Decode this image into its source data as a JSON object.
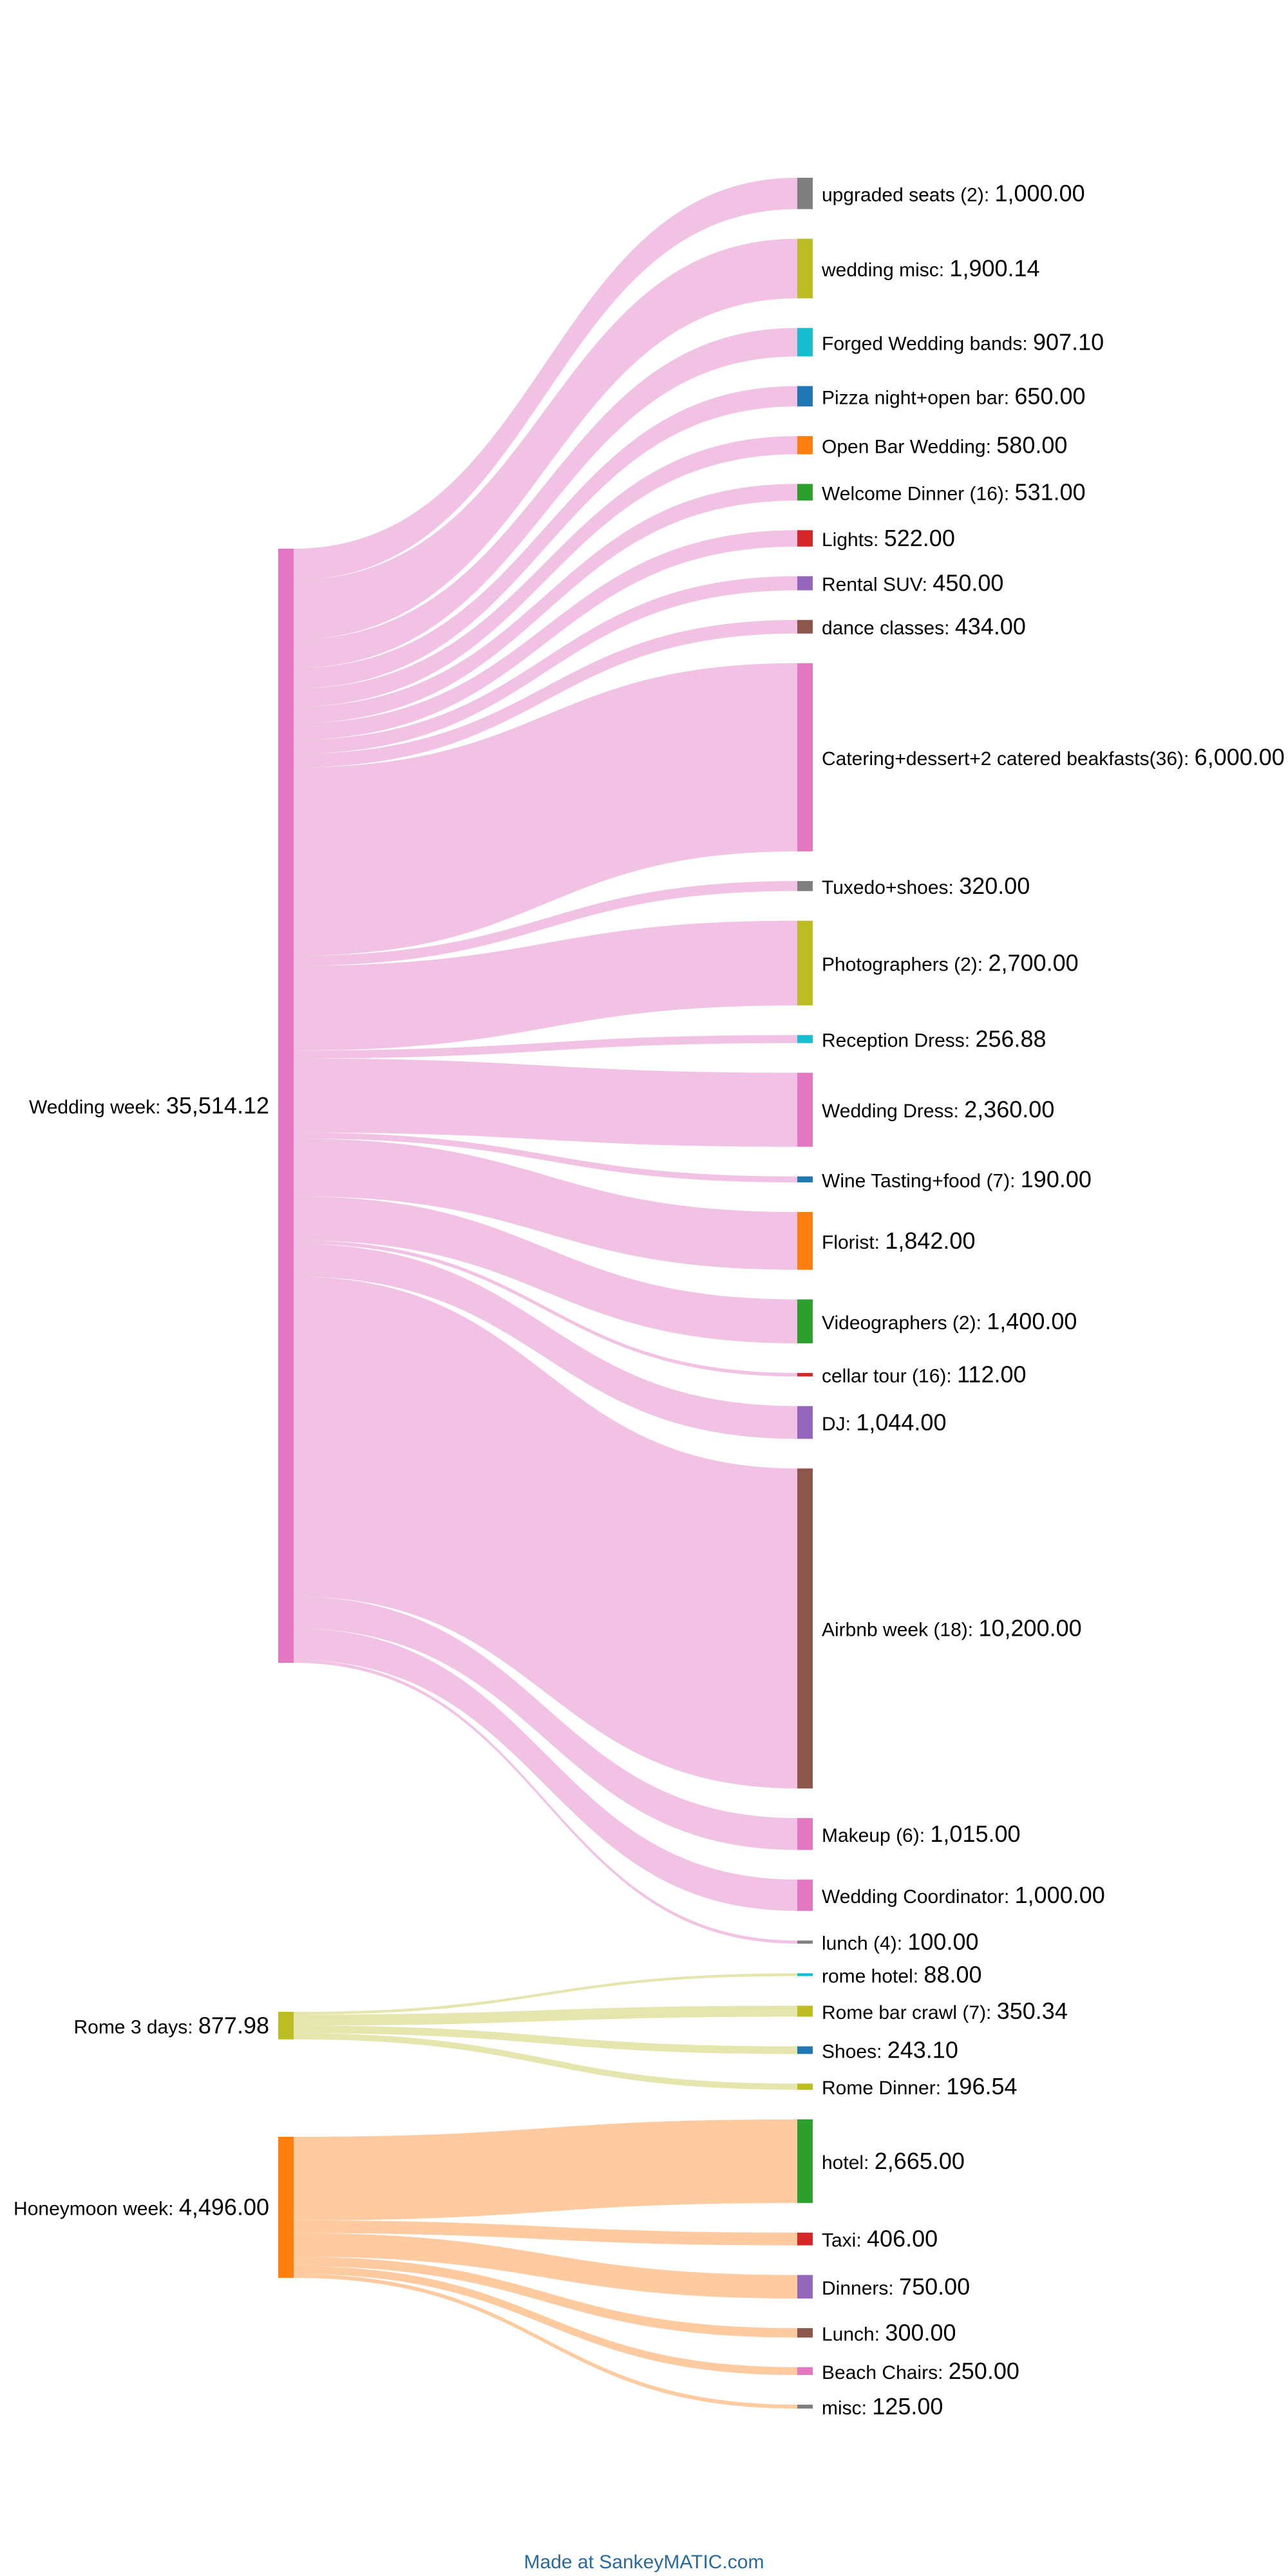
{
  "sources": [
    {
      "id": "wedding",
      "label": "Wedding week",
      "value": "35,514.12",
      "color": "#e377c2",
      "flow_color": "#ecadd9"
    },
    {
      "id": "rome",
      "label": "Rome 3 days",
      "value": "877.98",
      "color": "#bcbd22",
      "flow_color": "#dcdd93"
    },
    {
      "id": "honeymoon",
      "label": "Honeymoon week",
      "value": "4,496.00",
      "color": "#ff7f0e",
      "flow_color": "#fdb880"
    }
  ],
  "targets": [
    {
      "source": "wedding",
      "label": "upgraded seats (2)",
      "value": "1,000.00",
      "amount": 1000.0,
      "color": "#7f7f7f"
    },
    {
      "source": "wedding",
      "label": "wedding misc",
      "value": "1,900.14",
      "amount": 1900.14,
      "color": "#bcbd22"
    },
    {
      "source": "wedding",
      "label": "Forged Wedding bands",
      "value": "907.10",
      "amount": 907.1,
      "color": "#17becf"
    },
    {
      "source": "wedding",
      "label": "Pizza night+open bar",
      "value": "650.00",
      "amount": 650.0,
      "color": "#1f77b4"
    },
    {
      "source": "wedding",
      "label": "Open Bar Wedding",
      "value": "580.00",
      "amount": 580.0,
      "color": "#ff7f0e"
    },
    {
      "source": "wedding",
      "label": "Welcome Dinner (16)",
      "value": "531.00",
      "amount": 531.0,
      "color": "#2ca02c"
    },
    {
      "source": "wedding",
      "label": "Lights",
      "value": "522.00",
      "amount": 522.0,
      "color": "#d62728"
    },
    {
      "source": "wedding",
      "label": "Rental SUV",
      "value": "450.00",
      "amount": 450.0,
      "color": "#9467bd"
    },
    {
      "source": "wedding",
      "label": "dance classes",
      "value": "434.00",
      "amount": 434.0,
      "color": "#8c564b"
    },
    {
      "source": "wedding",
      "label": "Catering+dessert+2 catered beakfasts(36)",
      "value": "6,000.00",
      "amount": 6000.0,
      "color": "#e377c2"
    },
    {
      "source": "wedding",
      "label": "Tuxedo+shoes",
      "value": "320.00",
      "amount": 320.0,
      "color": "#7f7f7f"
    },
    {
      "source": "wedding",
      "label": "Photographers (2)",
      "value": "2,700.00",
      "amount": 2700.0,
      "color": "#bcbd22"
    },
    {
      "source": "wedding",
      "label": "Reception Dress",
      "value": "256.88",
      "amount": 256.88,
      "color": "#17becf"
    },
    {
      "source": "wedding",
      "label": "Wedding Dress",
      "value": "2,360.00",
      "amount": 2360.0,
      "color": "#e377c2"
    },
    {
      "source": "wedding",
      "label": "Wine Tasting+food (7)",
      "value": "190.00",
      "amount": 190.0,
      "color": "#1f77b4"
    },
    {
      "source": "wedding",
      "label": "Florist",
      "value": "1,842.00",
      "amount": 1842.0,
      "color": "#ff7f0e"
    },
    {
      "source": "wedding",
      "label": "Videographers (2)",
      "value": "1,400.00",
      "amount": 1400.0,
      "color": "#2ca02c"
    },
    {
      "source": "wedding",
      "label": "cellar tour (16)",
      "value": "112.00",
      "amount": 112.0,
      "color": "#d62728"
    },
    {
      "source": "wedding",
      "label": "DJ",
      "value": "1,044.00",
      "amount": 1044.0,
      "color": "#9467bd"
    },
    {
      "source": "wedding",
      "label": "Airbnb week (18)",
      "value": "10,200.00",
      "amount": 10200.0,
      "color": "#8c564b"
    },
    {
      "source": "wedding",
      "label": "Makeup (6)",
      "value": "1,015.00",
      "amount": 1015.0,
      "color": "#e377c2"
    },
    {
      "source": "wedding",
      "label": "Wedding Coordinator",
      "value": "1,000.00",
      "amount": 1000.0,
      "color": "#e377c2"
    },
    {
      "source": "wedding",
      "label": "lunch (4)",
      "value": "100.00",
      "amount": 100.0,
      "color": "#7f7f7f"
    },
    {
      "source": "rome",
      "label": "rome hotel",
      "value": "88.00",
      "amount": 88.0,
      "color": "#17becf"
    },
    {
      "source": "rome",
      "label": "Rome bar crawl (7)",
      "value": "350.34",
      "amount": 350.34,
      "color": "#bcbd22"
    },
    {
      "source": "rome",
      "label": "Shoes",
      "value": "243.10",
      "amount": 243.1,
      "color": "#1f77b4"
    },
    {
      "source": "rome",
      "label": "Rome Dinner",
      "value": "196.54",
      "amount": 196.54,
      "color": "#bcbd22"
    },
    {
      "source": "honeymoon",
      "label": "hotel",
      "value": "2,665.00",
      "amount": 2665.0,
      "color": "#2ca02c"
    },
    {
      "source": "honeymoon",
      "label": "Taxi",
      "value": "406.00",
      "amount": 406.0,
      "color": "#d62728"
    },
    {
      "source": "honeymoon",
      "label": "Dinners",
      "value": "750.00",
      "amount": 750.0,
      "color": "#9467bd"
    },
    {
      "source": "honeymoon",
      "label": "Lunch",
      "value": "300.00",
      "amount": 300.0,
      "color": "#8c564b"
    },
    {
      "source": "honeymoon",
      "label": "Beach Chairs",
      "value": "250.00",
      "amount": 250.0,
      "color": "#e377c2"
    },
    {
      "source": "honeymoon",
      "label": "misc",
      "value": "125.00",
      "amount": 125.0,
      "color": "#7f7f7f"
    }
  ],
  "footer": "Made at SankeyMATIC.com"
}
